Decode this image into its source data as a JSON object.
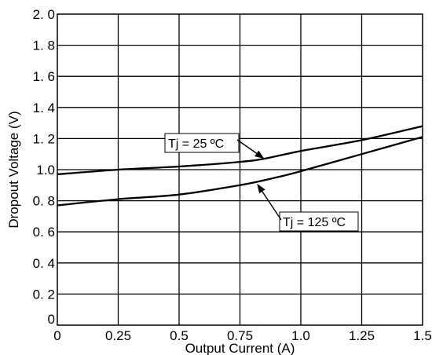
{
  "chart_data": {
    "type": "line",
    "xlabel": "Output Current (A)",
    "ylabel": "Dropout Voltage (V)",
    "xlim": [
      0,
      1.5
    ],
    "ylim": [
      0,
      2.0
    ],
    "x_ticks": [
      0,
      0.25,
      0.5,
      0.75,
      1.0,
      1.25,
      1.5
    ],
    "x_tick_labels": [
      "0",
      "0.25",
      "0.5",
      "0.75",
      "1.0",
      "1.25",
      "1.5"
    ],
    "y_ticks": [
      0,
      0.2,
      0.4,
      0.6,
      0.8,
      1.0,
      1.2,
      1.4,
      1.6,
      1.8,
      2.0
    ],
    "y_tick_labels": [
      "0",
      "0. 2",
      "0. 4",
      "0. 6",
      "0. 8",
      "1.0",
      "1. 2",
      "1. 4",
      "1. 6",
      "1. 8",
      "2. 0"
    ],
    "grid": true,
    "legend": "none",
    "series": [
      {
        "name": "Tj = 25 ºC",
        "x": [
          0,
          0.25,
          0.5,
          0.75,
          0.85,
          1.0,
          1.25,
          1.5
        ],
        "y": [
          0.97,
          1.0,
          1.02,
          1.05,
          1.07,
          1.12,
          1.19,
          1.28
        ]
      },
      {
        "name": "Tj = 125 ºC",
        "x": [
          0,
          0.25,
          0.5,
          0.75,
          0.9,
          1.0,
          1.25,
          1.5
        ],
        "y": [
          0.77,
          0.81,
          0.84,
          0.9,
          0.95,
          0.99,
          1.1,
          1.21
        ]
      }
    ],
    "annotations": [
      {
        "text": "Tj = 25 ºC",
        "series": 0,
        "target_x": 0.85,
        "target_y": 1.07
      },
      {
        "text": "Tj = 125 ºC",
        "series": 1,
        "target_x": 0.82,
        "target_y": 0.91
      }
    ]
  }
}
